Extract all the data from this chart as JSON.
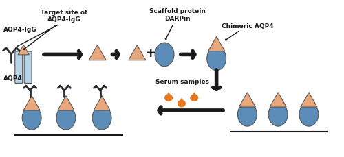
{
  "bg_color": "#ffffff",
  "triangle_color": "#E8A87C",
  "circle_color": "#5B8DB8",
  "antibody_color": "#2c2c2c",
  "aqp4_color": "#B8D4E8",
  "arrow_color": "#1a1a1a",
  "drop_color": "#E87820",
  "text_color": "#1a1a1a",
  "label_aqp4_igg": "AQP4-IgG",
  "label_aqp4": "AQP4",
  "label_target": "Target site of\nAQP4-IgG",
  "label_scaffold": "Scaffold protein\nDARPin",
  "label_chimeric": "Chimeric AQP4",
  "label_serum": "Serum samples"
}
